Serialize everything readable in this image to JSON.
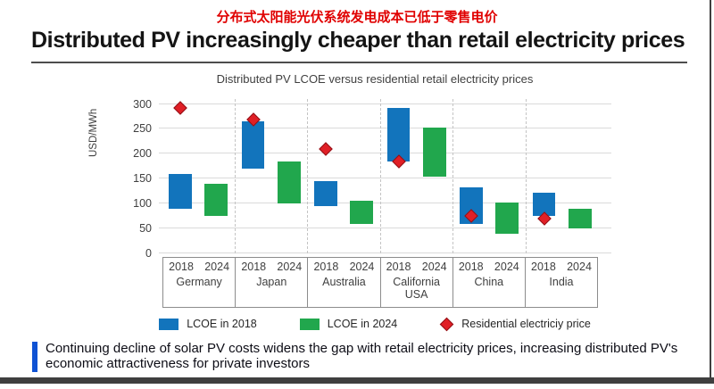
{
  "header": {
    "cn_title": "分布式太阳能光伏系统发电成本已低于零售电价",
    "title": "Distributed PV increasingly cheaper than retail electricity prices"
  },
  "chart_data": {
    "type": "bar",
    "subtype": "floating-range-bars-with-diamond-markers",
    "title": "Distributed PV LCOE versus residential retail electricity prices",
    "ylabel": "USD/MWh",
    "ylim": [
      0,
      310
    ],
    "yticks": [
      0,
      50,
      100,
      150,
      200,
      250,
      300
    ],
    "grid": true,
    "legend_position": "bottom",
    "categories": [
      "Germany",
      "Japan",
      "Australia",
      "California USA",
      "China",
      "India"
    ],
    "year_labels": [
      "2018",
      "2024"
    ],
    "series": [
      {
        "name": "LCOE in 2018",
        "type": "range-bar",
        "color": "#1274BC",
        "ranges_usd_mwh": [
          [
            90,
            160
          ],
          [
            170,
            265
          ],
          [
            95,
            145
          ],
          [
            185,
            292
          ],
          [
            60,
            133
          ],
          [
            75,
            122
          ]
        ]
      },
      {
        "name": "LCOE in 2024",
        "type": "range-bar",
        "color": "#21A74D",
        "ranges_usd_mwh": [
          [
            75,
            140
          ],
          [
            100,
            185
          ],
          [
            60,
            105
          ],
          [
            155,
            252
          ],
          [
            40,
            103
          ],
          [
            50,
            90
          ]
        ]
      },
      {
        "name": "Residential electriciy price",
        "type": "scatter",
        "marker": "diamond",
        "color": "#E01F26",
        "values_usd_mwh": [
          292,
          268,
          210,
          185,
          75,
          70
        ]
      }
    ]
  },
  "callout": {
    "text": "Continuing decline of solar PV costs widens the gap with retail electricity prices, increasing distributed PV's economic attractiveness for private investors",
    "accent_color": "#0F52D4"
  }
}
